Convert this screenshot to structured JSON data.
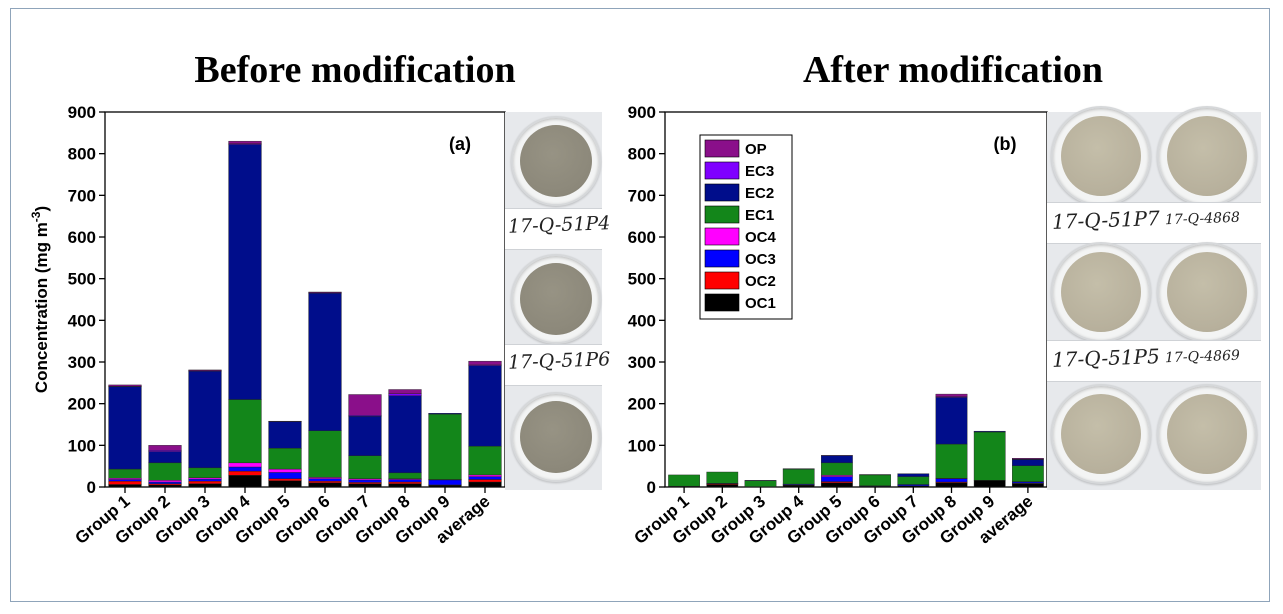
{
  "chart_data": [
    {
      "type": "bar",
      "stacked": true,
      "title": "Before modification",
      "panel_label": "(a)",
      "ylabel": "Concentration (mg m",
      "ylabel_superscript": "-3",
      "ylabel_close": ")",
      "ylim": [
        0,
        900
      ],
      "yticks": [
        0,
        100,
        200,
        300,
        400,
        500,
        600,
        700,
        800,
        900
      ],
      "categories": [
        "Group 1",
        "Group 2",
        "Group 3",
        "Group 4",
        "Group 5",
        "Group 6",
        "Group 7",
        "Group 8",
        "Group 9",
        "average"
      ],
      "series": [
        {
          "name": "OC1",
          "color": "#000000",
          "values": [
            6,
            5,
            8,
            28,
            15,
            10,
            8,
            8,
            4,
            12
          ]
        },
        {
          "name": "OC2",
          "color": "#ff0000",
          "values": [
            8,
            3,
            6,
            10,
            5,
            4,
            3,
            4,
            1,
            6
          ]
        },
        {
          "name": "OC3",
          "color": "#0000ff",
          "values": [
            4,
            4,
            5,
            10,
            15,
            6,
            6,
            6,
            12,
            7
          ]
        },
        {
          "name": "OC4",
          "color": "#ff00ff",
          "values": [
            3,
            4,
            3,
            10,
            8,
            3,
            3,
            2,
            1,
            4
          ]
        },
        {
          "name": "EC1",
          "color": "#13861a",
          "values": [
            22,
            42,
            24,
            152,
            50,
            112,
            55,
            14,
            157,
            69
          ]
        },
        {
          "name": "EC2",
          "color": "#000d8b",
          "values": [
            198,
            27,
            232,
            612,
            64,
            330,
            95,
            185,
            2,
            193
          ]
        },
        {
          "name": "EC3",
          "color": "#7f00ff",
          "values": [
            1,
            3,
            1,
            2,
            1,
            1,
            2,
            5,
            0,
            2
          ]
        },
        {
          "name": "OP",
          "color": "#8a0f8a",
          "values": [
            3,
            12,
            2,
            6,
            0,
            2,
            50,
            10,
            0,
            9
          ]
        }
      ]
    },
    {
      "type": "bar",
      "stacked": true,
      "title": "After modification",
      "panel_label": "(b)",
      "ylim": [
        0,
        900
      ],
      "yticks": [
        0,
        100,
        200,
        300,
        400,
        500,
        600,
        700,
        800,
        900
      ],
      "categories": [
        "Group 1",
        "Group 2",
        "Group 3",
        "Group 4",
        "Group 5",
        "Group 6",
        "Group 7",
        "Group 8",
        "Group 9",
        "average"
      ],
      "legend": [
        "OP",
        "EC3",
        "EC2",
        "EC1",
        "OC4",
        "OC3",
        "OC2",
        "OC1"
      ],
      "series": [
        {
          "name": "OC1",
          "color": "#000000",
          "values": [
            2,
            6,
            1,
            4,
            10,
            2,
            3,
            10,
            16,
            8
          ]
        },
        {
          "name": "OC2",
          "color": "#ff0000",
          "values": [
            0,
            2,
            0,
            1,
            3,
            0,
            0,
            2,
            0,
            1
          ]
        },
        {
          "name": "OC3",
          "color": "#0000ff",
          "values": [
            0,
            1,
            0,
            2,
            12,
            1,
            3,
            8,
            0,
            3
          ]
        },
        {
          "name": "OC4",
          "color": "#ff00ff",
          "values": [
            0,
            0,
            0,
            0,
            3,
            0,
            0,
            1,
            0,
            1
          ]
        },
        {
          "name": "EC1",
          "color": "#13861a",
          "values": [
            27,
            27,
            14,
            36,
            30,
            26,
            19,
            82,
            116,
            38
          ]
        },
        {
          "name": "EC2",
          "color": "#000d8b",
          "values": [
            0,
            0,
            1,
            1,
            17,
            1,
            7,
            112,
            2,
            15
          ]
        },
        {
          "name": "EC3",
          "color": "#7f00ff",
          "values": [
            0,
            0,
            0,
            0,
            1,
            0,
            0,
            2,
            0,
            1
          ]
        },
        {
          "name": "OP",
          "color": "#8a0f8a",
          "values": [
            0,
            0,
            0,
            0,
            0,
            0,
            0,
            6,
            0,
            2
          ]
        }
      ]
    }
  ],
  "photos": {
    "before_labels": [
      "17-Q-51P4",
      "17-Q-51P6"
    ],
    "after_labels_left": [
      "17-Q-51P7",
      "17-Q-51P5"
    ],
    "after_labels_right": [
      "17-Q-4868",
      "17-Q-4869"
    ],
    "filter_color_before": "#8c887a",
    "filter_color_after": "#b7b09c"
  }
}
